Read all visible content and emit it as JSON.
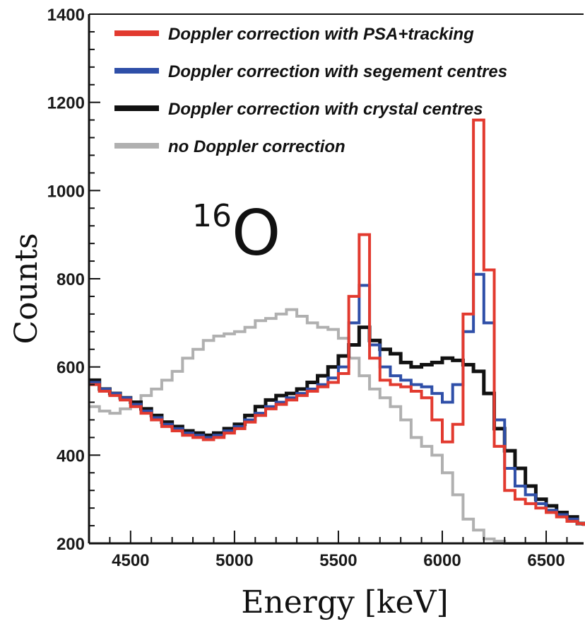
{
  "chart_data": {
    "type": "line",
    "title": "",
    "xlabel": "Energy [keV]",
    "ylabel": "Counts",
    "xlim": [
      4300,
      6680
    ],
    "ylim": [
      200,
      1400
    ],
    "xticks": [
      4500,
      5000,
      5500,
      6000,
      6500
    ],
    "yticks": [
      200,
      400,
      600,
      800,
      1000,
      1200,
      1400
    ],
    "grid": false,
    "legend": "top-right",
    "annotation": {
      "superscript": "16",
      "text": "O"
    },
    "series": [
      {
        "name": "no Doppler correction",
        "color": "#b0b0b0",
        "x": [
          4300,
          4350,
          4400,
          4450,
          4500,
          4550,
          4600,
          4650,
          4700,
          4750,
          4800,
          4850,
          4900,
          4950,
          5000,
          5050,
          5100,
          5150,
          5200,
          5250,
          5300,
          5350,
          5400,
          5450,
          5500,
          5550,
          5600,
          5650,
          5700,
          5750,
          5800,
          5850,
          5900,
          5950,
          6000,
          6050,
          6100,
          6150,
          6200,
          6250,
          6300,
          6350,
          6400,
          6450,
          6500,
          6550,
          6600,
          6650,
          6680
        ],
        "y": [
          510,
          500,
          495,
          505,
          520,
          535,
          550,
          570,
          590,
          620,
          640,
          660,
          670,
          675,
          680,
          690,
          705,
          710,
          720,
          730,
          715,
          700,
          690,
          685,
          665,
          620,
          580,
          550,
          530,
          510,
          480,
          440,
          420,
          400,
          360,
          310,
          255,
          230,
          210,
          205,
          200,
          200,
          200,
          200,
          200,
          200,
          200,
          200,
          200
        ]
      },
      {
        "name": "Doppler correction with crystal centres",
        "color": "#111111",
        "x": [
          4300,
          4350,
          4400,
          4450,
          4500,
          4550,
          4600,
          4650,
          4700,
          4750,
          4800,
          4850,
          4900,
          4950,
          5000,
          5050,
          5100,
          5150,
          5200,
          5250,
          5300,
          5350,
          5400,
          5450,
          5500,
          5550,
          5600,
          5650,
          5700,
          5750,
          5800,
          5850,
          5900,
          5950,
          6000,
          6050,
          6100,
          6150,
          6200,
          6250,
          6300,
          6350,
          6400,
          6450,
          6500,
          6550,
          6600,
          6650,
          6680
        ],
        "y": [
          570,
          550,
          540,
          530,
          520,
          505,
          490,
          475,
          465,
          455,
          450,
          445,
          450,
          460,
          470,
          490,
          510,
          525,
          535,
          540,
          550,
          565,
          580,
          600,
          625,
          650,
          690,
          660,
          640,
          630,
          610,
          600,
          605,
          610,
          620,
          615,
          605,
          590,
          540,
          460,
          410,
          370,
          330,
          300,
          285,
          270,
          260,
          245,
          240
        ]
      },
      {
        "name": "Doppler correction with segement centres",
        "color": "#2f4fa8",
        "x": [
          4300,
          4350,
          4400,
          4450,
          4500,
          4550,
          4600,
          4650,
          4700,
          4750,
          4800,
          4850,
          4900,
          4950,
          5000,
          5050,
          5100,
          5150,
          5200,
          5250,
          5300,
          5350,
          5400,
          5450,
          5500,
          5550,
          5600,
          5650,
          5700,
          5750,
          5800,
          5850,
          5900,
          5950,
          6000,
          6050,
          6100,
          6150,
          6200,
          6250,
          6300,
          6350,
          6400,
          6450,
          6500,
          6550,
          6600,
          6650,
          6680
        ],
        "y": [
          565,
          550,
          540,
          530,
          515,
          500,
          485,
          470,
          460,
          450,
          445,
          440,
          445,
          455,
          465,
          480,
          495,
          510,
          520,
          530,
          540,
          550,
          560,
          575,
          600,
          700,
          785,
          650,
          600,
          580,
          570,
          560,
          555,
          540,
          520,
          560,
          680,
          810,
          700,
          480,
          370,
          330,
          310,
          290,
          275,
          265,
          255,
          245,
          240
        ]
      },
      {
        "name": "Doppler correction with PSA+tracking",
        "color": "#e23a2f",
        "x": [
          4300,
          4350,
          4400,
          4450,
          4500,
          4550,
          4600,
          4650,
          4700,
          4750,
          4800,
          4850,
          4900,
          4950,
          5000,
          5050,
          5100,
          5150,
          5200,
          5250,
          5300,
          5350,
          5400,
          5450,
          5500,
          5550,
          5600,
          5650,
          5700,
          5750,
          5800,
          5850,
          5900,
          5950,
          6000,
          6050,
          6100,
          6150,
          6200,
          6250,
          6300,
          6350,
          6400,
          6450,
          6500,
          6550,
          6600,
          6650,
          6680
        ],
        "y": [
          560,
          545,
          535,
          525,
          510,
          495,
          480,
          465,
          455,
          445,
          440,
          435,
          440,
          450,
          460,
          475,
          490,
          505,
          515,
          525,
          535,
          545,
          555,
          565,
          585,
          760,
          900,
          620,
          570,
          560,
          555,
          545,
          530,
          480,
          430,
          470,
          720,
          1160,
          820,
          420,
          320,
          300,
          290,
          280,
          270,
          260,
          250,
          245,
          240
        ]
      }
    ]
  }
}
